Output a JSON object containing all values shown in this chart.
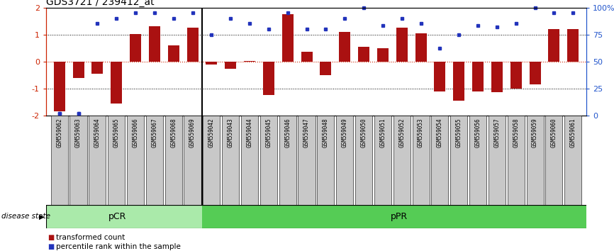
{
  "title": "GDS3721 / 239412_at",
  "samples": [
    "GSM559062",
    "GSM559063",
    "GSM559064",
    "GSM559065",
    "GSM559066",
    "GSM559067",
    "GSM559068",
    "GSM559069",
    "GSM559042",
    "GSM559043",
    "GSM559044",
    "GSM559045",
    "GSM559046",
    "GSM559047",
    "GSM559048",
    "GSM559049",
    "GSM559050",
    "GSM559051",
    "GSM559052",
    "GSM559053",
    "GSM559054",
    "GSM559055",
    "GSM559056",
    "GSM559057",
    "GSM559058",
    "GSM559059",
    "GSM559060",
    "GSM559061"
  ],
  "bar_values": [
    -1.85,
    -0.6,
    -0.45,
    -1.55,
    1.02,
    1.3,
    0.6,
    1.25,
    -0.12,
    -0.28,
    0.02,
    -1.25,
    1.75,
    0.35,
    -0.5,
    1.1,
    0.55,
    0.5,
    1.25,
    1.05,
    -1.1,
    -1.45,
    -1.1,
    -1.15,
    -1.0,
    -0.85,
    1.2,
    1.2
  ],
  "dot_pct": [
    2,
    2,
    85,
    90,
    95,
    95,
    90,
    95,
    75,
    90,
    85,
    80,
    95,
    80,
    80,
    90,
    100,
    83,
    90,
    85,
    62,
    75,
    83,
    82,
    85,
    100,
    95,
    95
  ],
  "pCR_count": 8,
  "bar_color": "#aa1111",
  "dot_color": "#2233bb",
  "pCR_color": "#aaeaaa",
  "pPR_color": "#55cc55",
  "red_axis_color": "#cc2200",
  "blue_axis_color": "#2255cc",
  "gray_box_color": "#c8c8c8",
  "left_ylim": [
    -2.0,
    2.0
  ],
  "right_ylim": [
    0,
    100
  ]
}
